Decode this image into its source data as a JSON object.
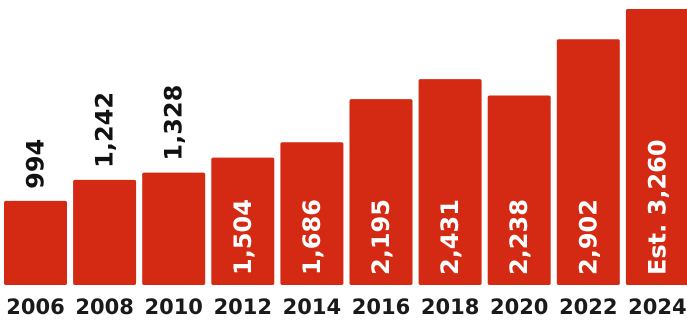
{
  "chart_data": {
    "type": "bar",
    "categories": [
      "2006",
      "2008",
      "2010",
      "2012",
      "2014",
      "2016",
      "2018",
      "2020",
      "2022",
      "2024"
    ],
    "values": [
      994,
      1242,
      1328,
      1504,
      1686,
      2195,
      2431,
      2238,
      2902,
      3260
    ],
    "data_labels": [
      "994",
      "1,242",
      "1,328",
      "1,504",
      "1,686",
      "2,195",
      "2,431",
      "2,238",
      "2,902",
      "Est. 3,260"
    ],
    "bar_color": "#d42a13",
    "label_inside_color": "#ffffff",
    "label_outside_color": "#111111",
    "title": "",
    "xlabel": "",
    "ylabel": "",
    "ylim": [
      0,
      3400
    ],
    "grid": false,
    "legend": "none"
  }
}
